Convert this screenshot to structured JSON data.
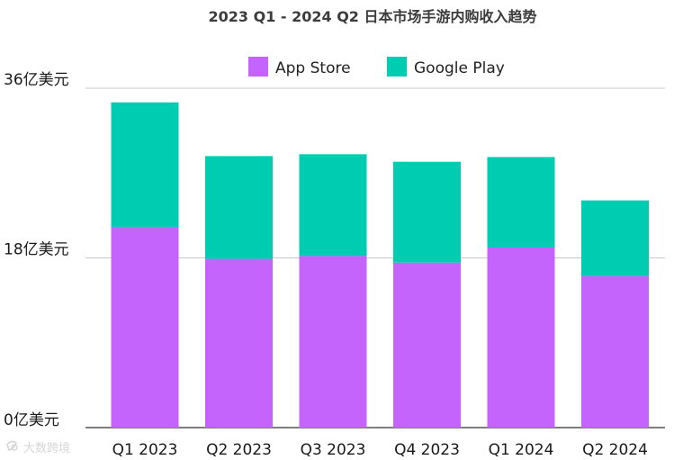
{
  "chart_data": {
    "type": "bar",
    "stacked": true,
    "title": "2023 Q1 - 2024 Q2 日本市场手游内购收入趋势",
    "categories": [
      "Q1 2023",
      "Q2 2023",
      "Q3 2023",
      "Q4 2023",
      "Q1 2024",
      "Q2 2024"
    ],
    "series": [
      {
        "name": "App Store",
        "color": "#c464fc",
        "values": [
          21.3,
          17.9,
          18.2,
          17.5,
          19.1,
          16.1
        ]
      },
      {
        "name": "Google Play",
        "color": "#00ccb2",
        "values": [
          13.2,
          10.9,
          10.8,
          10.7,
          9.6,
          8.0
        ]
      }
    ],
    "ylim": [
      0,
      36
    ],
    "yticks": [
      {
        "value": 0,
        "label": "0亿美元"
      },
      {
        "value": 18,
        "label": "18亿美元"
      },
      {
        "value": 36,
        "label": "36亿美元"
      }
    ],
    "grid": true,
    "legend_position": "top-center"
  },
  "watermark": "大数跨境",
  "watermark_icon": "brand-logo-icon"
}
